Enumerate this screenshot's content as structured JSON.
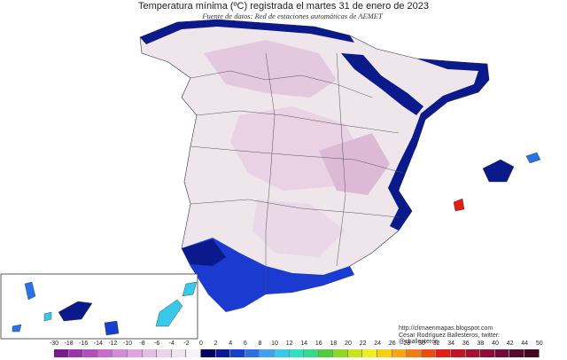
{
  "header": {
    "title": "Temperatura mínima (ºC) registrada el martes 31 de enero de 2023",
    "subtitle": "Fuente de datos: Red de estaciones automáticas de AEMET"
  },
  "credits": {
    "url": "http://climaenmapas.blogspot.com",
    "author": "César Rodríguez Ballesteros, twitter: @cballesteros"
  },
  "legend": {
    "labels": [
      "-30",
      "-18",
      "-16",
      "-14",
      "-12",
      "-10",
      "-8",
      "-6",
      "-4",
      "-2",
      "0",
      "2",
      "4",
      "6",
      "8",
      "10",
      "12",
      "14",
      "16",
      "18",
      "20",
      "22",
      "24",
      "26",
      "28",
      "30",
      "32",
      "34",
      "36",
      "38",
      "40",
      "42",
      "44",
      "50"
    ],
    "colors": [
      "#7a1a8f",
      "#9a35a8",
      "#b34fbd",
      "#c86bcc",
      "#d58ad6",
      "#dfa3dd",
      "#e6bde3",
      "#ecd3ea",
      "#f2e3f1",
      "#f8f1f7",
      "#000066",
      "#0a1a9e",
      "#1640cc",
      "#2a70e6",
      "#3fa0f0",
      "#38c8e8",
      "#2ee0c4",
      "#37d98a",
      "#55cc3c",
      "#8ed828",
      "#c8e41a",
      "#f2ee1e",
      "#f9cf14",
      "#f9a510",
      "#f57a0f",
      "#ef4a10",
      "#e11e17",
      "#c51224",
      "#a9102e",
      "#8c0f35",
      "#6f0d38",
      "#570a2e",
      "#420820"
    ]
  },
  "colors": {
    "land": "#ece2e8",
    "cold": "#e3c6dd",
    "coast": "#0b1a8a",
    "coast2": "#1a3ad0",
    "border": "#555555"
  }
}
